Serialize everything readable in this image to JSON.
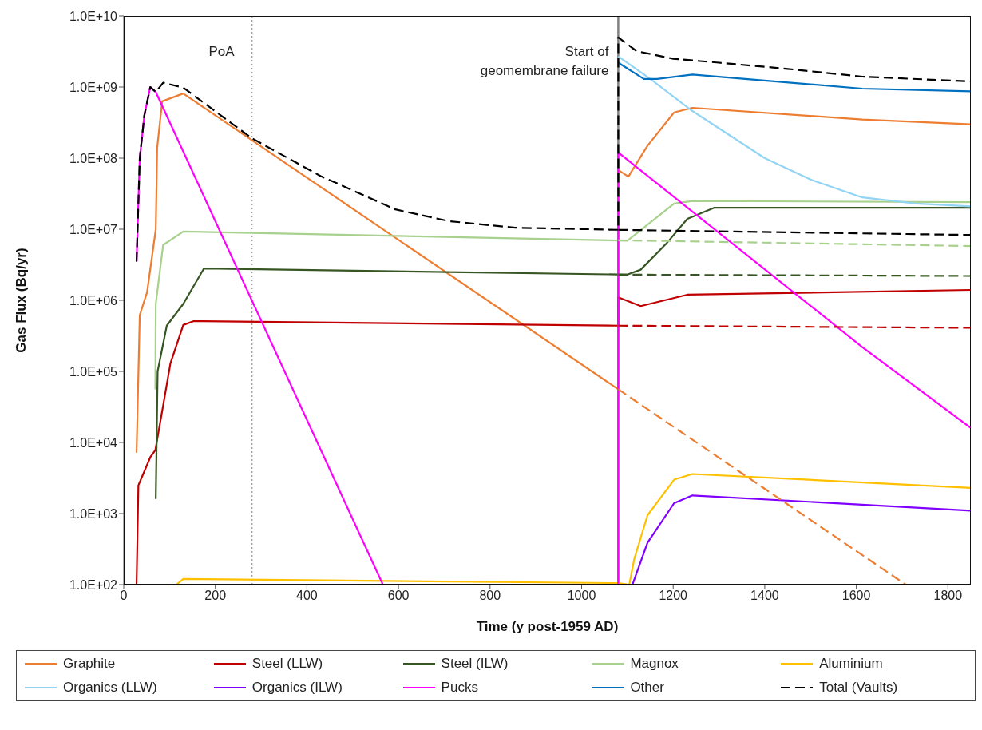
{
  "chart_data": {
    "type": "line",
    "xlabel": "Time (y post-1959 AD)",
    "ylabel": "Gas Flux (Bq/yr)",
    "log": "y",
    "legend": "bottom",
    "marker": "none",
    "xlim": [
      0,
      1850
    ],
    "xticks": [
      0,
      200,
      400,
      600,
      800,
      1000,
      1200,
      1400,
      1600,
      1800
    ],
    "ylim": [
      100,
      10000000000
    ],
    "yticks": [
      {
        "value": 100,
        "label": "1.0E+02"
      },
      {
        "value": 1000,
        "label": "1.0E+03"
      },
      {
        "value": 10000,
        "label": "1.0E+04"
      },
      {
        "value": 100000,
        "label": "1.0E+05"
      },
      {
        "value": 1000000,
        "label": "1.0E+06"
      },
      {
        "value": 10000000,
        "label": "1.0E+07"
      },
      {
        "value": 100000000,
        "label": "1.0E+08"
      },
      {
        "value": 1000000000,
        "label": "1.0E+09"
      },
      {
        "value": 10000000000,
        "label": "1.0E+10"
      }
    ],
    "ref_lines": [
      {
        "axis": "x",
        "value": 280,
        "label": "PoA",
        "color": "#a0a0a0",
        "line_style": "dotted"
      },
      {
        "axis": "x",
        "value": 1080,
        "label": "Start of geomembrane failure",
        "color": "#808080",
        "line_style": "solid"
      }
    ],
    "series": [
      {
        "name": "Graphite",
        "color": "#ed7d31",
        "line_style": "solid",
        "x": [
          28,
          35,
          51,
          70,
          73,
          84,
          130,
          1080,
          1080,
          1102,
          1144,
          1202,
          1242,
          1613,
          1850
        ],
        "values": [
          7200.0,
          620000.0,
          1300000.0,
          10000000.0,
          140000000.0,
          630000000.0,
          810000000.0,
          56000.0,
          68000000.0,
          55000000.0,
          150000000.0,
          440000000.0,
          510000000.0,
          350000000.0,
          300000000.0
        ]
      },
      {
        "name": "Steel (LLW)",
        "color": "#c00000",
        "line_style": "solid",
        "x": [
          28,
          32,
          58,
          69,
          86,
          102,
          130,
          153,
          1080,
          1080,
          1129,
          1231,
          1850
        ],
        "values": [
          100.0,
          2500.0,
          6200.0,
          7800.0,
          33000.0,
          130000.0,
          450000.0,
          510000.0,
          440000.0,
          1100000.0,
          830000.0,
          1200000.0,
          1400000.0
        ]
      },
      {
        "name": "Steel (ILW)",
        "color": "#375623",
        "line_style": "solid",
        "x": [
          70,
          74,
          94,
          130,
          175,
          1100,
          1129,
          1187,
          1231,
          1289,
          1850
        ],
        "values": [
          1600.0,
          100000.0,
          440000.0,
          890000.0,
          2800000.0,
          2300000.0,
          2700000.0,
          6500000.0,
          14000000.0,
          20000000.0,
          20000000.0
        ]
      },
      {
        "name": "Magnox",
        "color": "#a9d18e",
        "line_style": "solid",
        "x": [
          69,
          70,
          86,
          130,
          1100,
          1202,
          1242,
          1850
        ],
        "values": [
          56000.0,
          890000.0,
          6000000.0,
          9300000.0,
          6900000.0,
          23000000.0,
          25000000.0,
          24000000.0
        ]
      },
      {
        "name": "Aluminium",
        "color": "#ffc000",
        "line_style": "solid",
        "x": [
          115,
          130,
          1080,
          1104,
          1115,
          1144,
          1202,
          1242,
          1850
        ],
        "values": [
          100.0,
          120.0,
          105.0,
          100.0,
          230.0,
          950.0,
          3000.0,
          3600.0,
          2300.0
        ]
      },
      {
        "name": "Organics (LLW)",
        "color": "#92d4f4",
        "line_style": "solid",
        "x": [
          1080,
          1150,
          1242,
          1400,
          1500,
          1613,
          1731,
          1850
        ],
        "values": [
          2700000000.0,
          1300000000.0,
          460000000.0,
          100000000.0,
          50000000.0,
          28000000.0,
          23000000.0,
          21000000.0
        ]
      },
      {
        "name": "Organics (ILW)",
        "color": "#8000ff",
        "line_style": "solid",
        "x": [
          1111,
          1144,
          1202,
          1242,
          1850
        ],
        "values": [
          100.0,
          390.0,
          1400.0,
          1800.0,
          1100.0
        ]
      },
      {
        "name": "Pucks",
        "color": "#ff00ff",
        "line_style": "solid",
        "x": [
          28,
          35,
          45,
          58,
          70,
          566,
          800,
          1080,
          1080,
          1613,
          1850
        ],
        "values": [
          3500000.0,
          100000000.0,
          400000000.0,
          1000000000.0,
          850000000.0,
          100.0,
          null,
          100.0,
          120000000.0,
          220000.0,
          16000.0
        ]
      },
      {
        "name": "Other",
        "color": "#0070c0",
        "line_style": "solid",
        "x": [
          1080,
          1136,
          1165,
          1242,
          1613,
          1850
        ],
        "values": [
          2200000000.0,
          1300000000.0,
          1300000000.0,
          1500000000.0,
          950000000.0,
          870000000.0
        ]
      },
      {
        "name": "Total (Vaults)",
        "color": "#000000",
        "line_style": "dashed",
        "x": [
          28,
          35,
          45,
          58,
          70,
          86,
          130,
          280,
          430,
          593,
          710,
          855,
          1080,
          1080,
          1120,
          1200,
          1300,
          1450,
          1613,
          1850
        ],
        "values": [
          3500000.0,
          100000000.0,
          400000000.0,
          1000000000.0,
          850000000.0,
          1150000000.0,
          980000000.0,
          190000000.0,
          56000000.0,
          19000000.0,
          13000000.0,
          10500000.0,
          9800000.0,
          5000000000.0,
          3200000000.0,
          2500000000.0,
          2200000000.0,
          1800000000.0,
          1400000000.0,
          1200000000.0
        ]
      },
      {
        "color": "#ed7d31",
        "line_style": "dashed",
        "x": [
          1080,
          1708
        ],
        "values": [
          56000.0,
          100.0
        ]
      },
      {
        "color": "#c00000",
        "line_style": "dashed",
        "x": [
          1080,
          1850
        ],
        "values": [
          440000.0,
          410000.0
        ]
      },
      {
        "color": "#375623",
        "line_style": "dashed",
        "x": [
          1080,
          1850
        ],
        "values": [
          2300000.0,
          2200000.0
        ]
      },
      {
        "color": "#a9d18e",
        "line_style": "dashed",
        "x": [
          1080,
          1850
        ],
        "values": [
          7000000.0,
          5800000.0
        ]
      },
      {
        "color": "#000000",
        "line_style": "dashed",
        "x": [
          1080,
          1850
        ],
        "values": [
          9800000.0,
          8300000.0
        ]
      }
    ]
  }
}
